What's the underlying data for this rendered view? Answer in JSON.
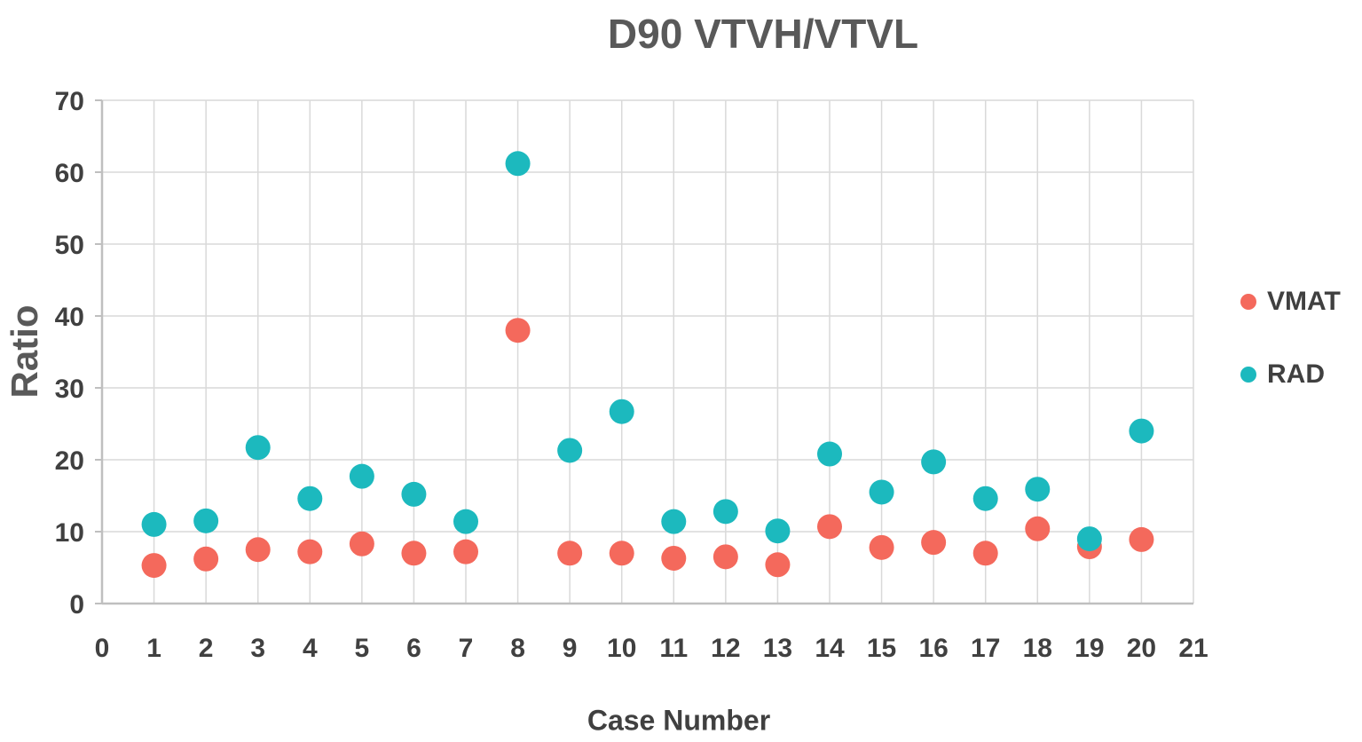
{
  "chart_data": {
    "type": "scatter",
    "title": "D90 VTVH/VTVL",
    "xlabel": "Case Number",
    "ylabel": "Ratio",
    "xlim": [
      0,
      21
    ],
    "ylim": [
      0,
      70
    ],
    "x_ticks": [
      0,
      1,
      2,
      3,
      4,
      5,
      6,
      7,
      8,
      9,
      10,
      11,
      12,
      13,
      14,
      15,
      16,
      17,
      18,
      19,
      20,
      21
    ],
    "y_ticks": [
      0,
      10,
      20,
      30,
      40,
      50,
      60,
      70
    ],
    "grid": true,
    "legend_position": "right",
    "x": [
      1,
      2,
      3,
      4,
      5,
      6,
      7,
      8,
      9,
      10,
      11,
      12,
      13,
      14,
      15,
      16,
      17,
      18,
      19,
      20
    ],
    "series": [
      {
        "name": "VMAT",
        "color": "#F4695C",
        "values": [
          5.3,
          6.2,
          7.5,
          7.2,
          8.3,
          7.0,
          7.2,
          38.0,
          7.0,
          7.0,
          6.3,
          6.5,
          5.4,
          10.7,
          7.8,
          8.5,
          7.0,
          10.4,
          7.9,
          8.9
        ]
      },
      {
        "name": "RAD",
        "color": "#1CB9BE",
        "values": [
          11.0,
          11.5,
          21.7,
          14.6,
          17.7,
          15.2,
          11.4,
          61.2,
          21.3,
          26.7,
          11.4,
          12.8,
          10.1,
          20.8,
          15.5,
          19.7,
          14.6,
          15.9,
          9.0,
          24.0
        ]
      }
    ],
    "colors": {
      "grid": "#D9D9D9",
      "axis": "#BFBFBF",
      "tick_text": "#404040",
      "title_text": "#595959"
    }
  }
}
